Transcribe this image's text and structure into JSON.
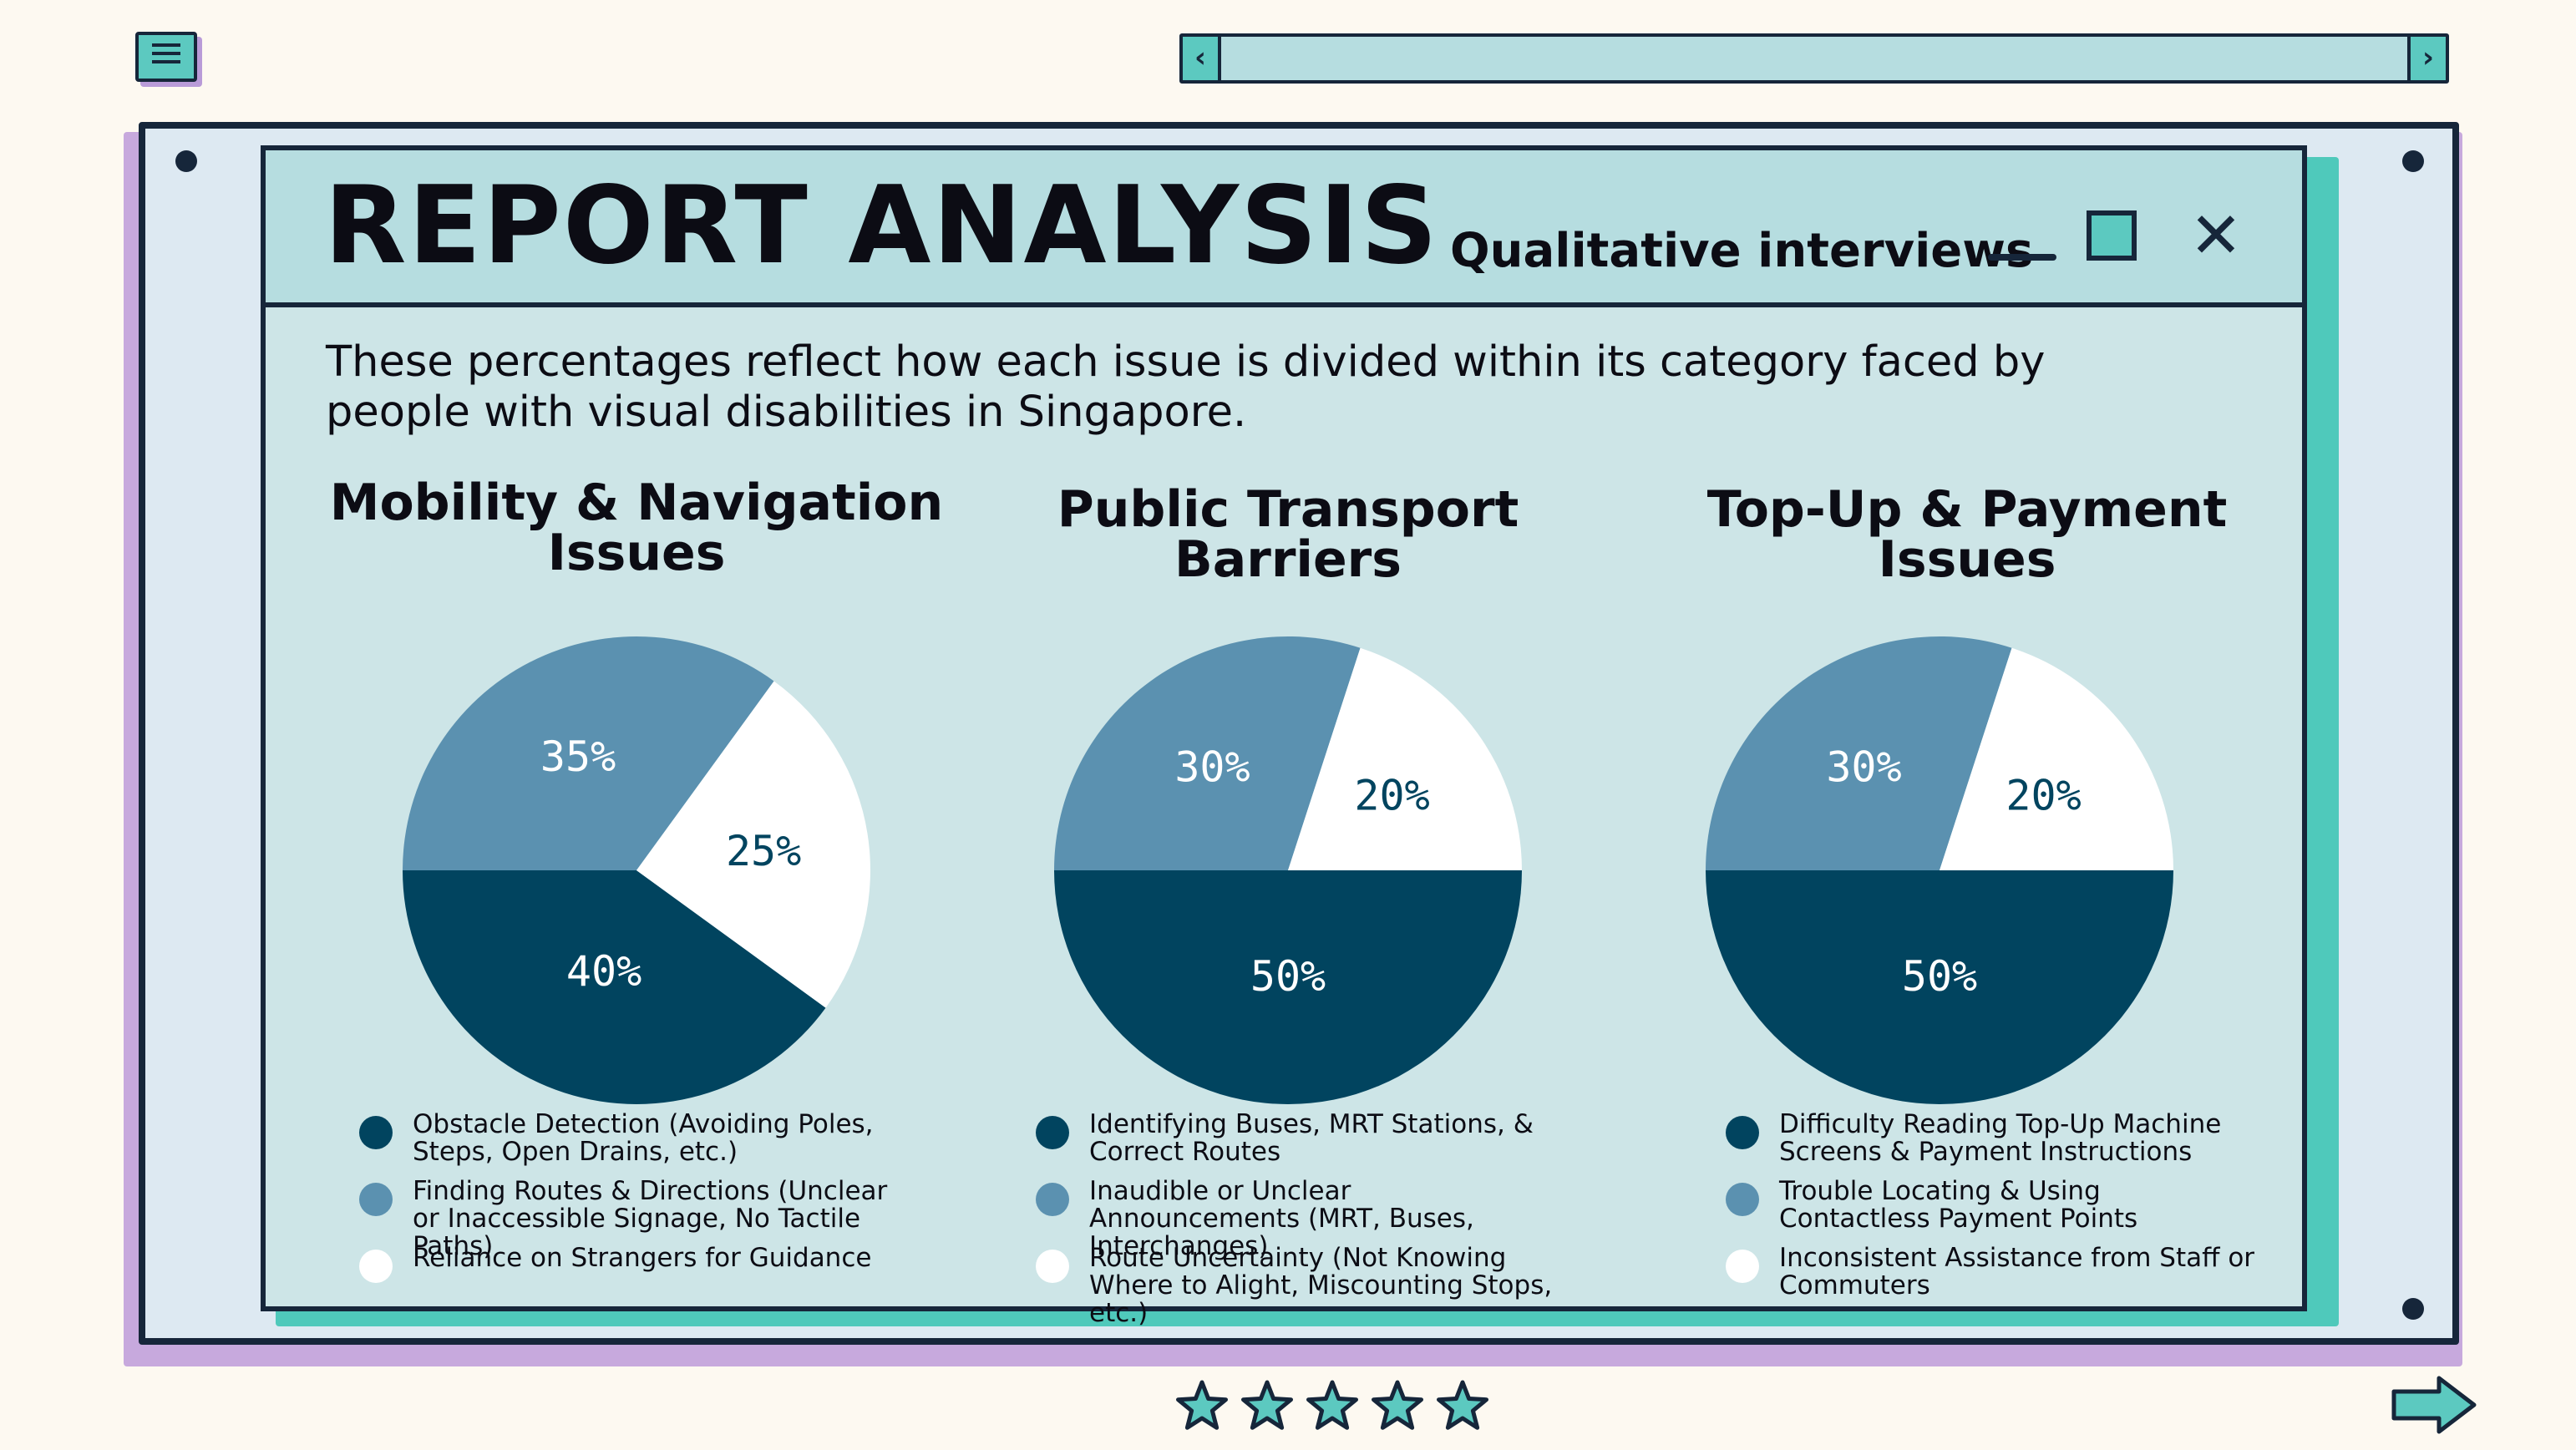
{
  "header": {
    "title": "REPORT ANALYSIS",
    "subtitle": "Qualitative interviews"
  },
  "description": "These percentages reflect how each issue is divided within its category faced by people with visual disabilities in Singapore.",
  "icons": {
    "menu": "menu-icon",
    "scroll_left": "chevron-left-icon",
    "scroll_right": "chevron-right-icon",
    "minimize": "minimize-icon",
    "maximize": "maximize-icon",
    "close": "close-icon",
    "stars": "star-icon",
    "next": "arrow-right-icon"
  },
  "colors": {
    "dark": "#01445f",
    "mid": "#5b91b0",
    "light": "#ffffff"
  },
  "chart_data": [
    {
      "type": "pie",
      "title": "Mobility & Navigation Issues",
      "slices": [
        {
          "label": "Obstacle Detection (Avoiding Poles, Steps, Open Drains, etc.)",
          "value": 40,
          "display": "40%",
          "color": "#01445f"
        },
        {
          "label": "Finding Routes & Directions (Unclear or Inaccessible Signage, No Tactile Paths)",
          "value": 35,
          "display": "35%",
          "color": "#5b91b0"
        },
        {
          "label": "Reliance on Strangers for Guidance",
          "value": 25,
          "display": "25%",
          "color": "#ffffff"
        }
      ],
      "legend_position": "bottom"
    },
    {
      "type": "pie",
      "title": "Public Transport Barriers",
      "slices": [
        {
          "label": "Identifying Buses, MRT Stations, & Correct Routes",
          "value": 50,
          "display": "50%",
          "color": "#01445f"
        },
        {
          "label": "Inaudible or Unclear Announcements (MRT, Buses, Interchanges)",
          "value": 30,
          "display": "30%",
          "color": "#5b91b0"
        },
        {
          "label": "Route Uncertainty (Not Knowing Where to Alight, Miscounting Stops, etc.)",
          "value": 20,
          "display": "20%",
          "color": "#ffffff"
        }
      ],
      "legend_position": "bottom"
    },
    {
      "type": "pie",
      "title": "Top-Up & Payment Issues",
      "slices": [
        {
          "label": "Difficulty Reading Top-Up Machine Screens & Payment Instructions",
          "value": 50,
          "display": "50%",
          "color": "#01445f"
        },
        {
          "label": "Trouble Locating & Using Contactless Payment Points",
          "value": 30,
          "display": "30%",
          "color": "#5b91b0"
        },
        {
          "label": "Inconsistent Assistance from Staff or Commuters",
          "value": 20,
          "display": "20%",
          "color": "#ffffff"
        }
      ],
      "legend_position": "bottom"
    }
  ]
}
